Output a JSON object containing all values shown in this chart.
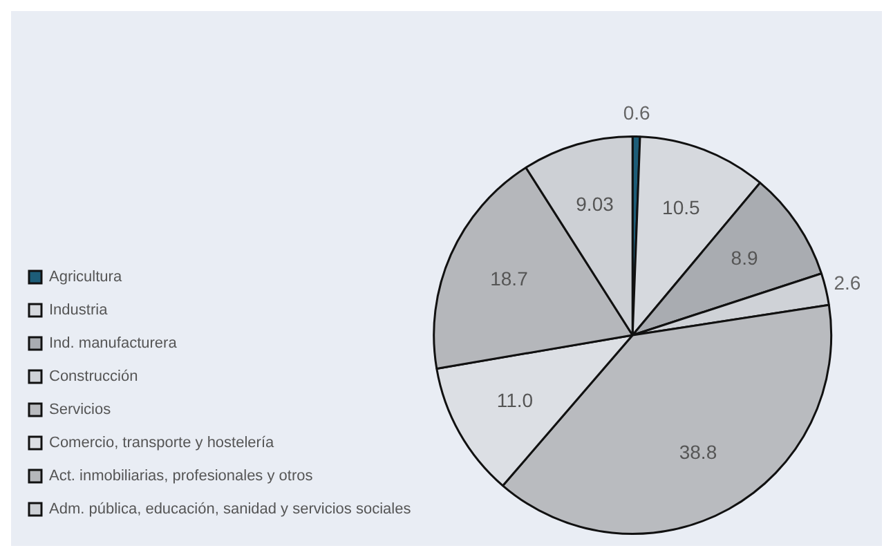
{
  "chart_data": {
    "type": "pie",
    "categories": [
      "Agricultura",
      "Industria",
      "Ind. manufacturera",
      "Construcción",
      "Servicios",
      "Comercio, transporte y hostelería",
      "Act. inmobiliarias, profesionales y otros",
      "Adm. pública, educación, sanidad y servicios sociales"
    ],
    "values": [
      0.6,
      10.5,
      8.9,
      2.6,
      38.8,
      11.0,
      18.7,
      9.03
    ],
    "value_labels": [
      "0.6",
      "10.5",
      "8.9",
      "2.6",
      "38.8",
      "11.0",
      "18.7",
      "9.03"
    ],
    "colors": [
      "#1d5d78",
      "#d6d9de",
      "#a9acb1",
      "#cfd2d7",
      "#b9bbbf",
      "#dcdfe4",
      "#b5b7bb",
      "#cdd0d5"
    ],
    "legend": "left"
  }
}
